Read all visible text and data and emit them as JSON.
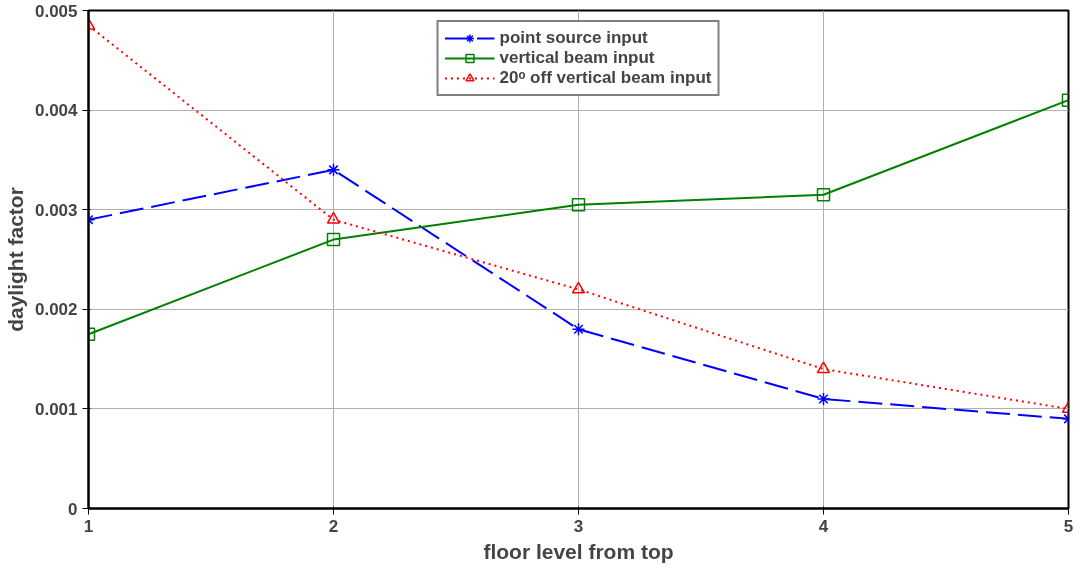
{
  "chart_data": {
    "type": "line",
    "xlabel": "floor level from top",
    "ylabel": "daylight factor",
    "x": [
      1,
      2,
      3,
      4,
      5
    ],
    "xlim": [
      1,
      5
    ],
    "xticks": [
      1,
      2,
      3,
      4,
      5
    ],
    "ylim": [
      0,
      0.005
    ],
    "yticks": [
      0,
      0.001,
      0.002,
      0.003,
      0.004,
      0.005
    ],
    "grid": true,
    "legend": "top",
    "series": [
      {
        "name": "point source input",
        "color": "#0000ff",
        "marker": "cross",
        "line_style": "dashed",
        "values": [
          0.0029,
          0.0034,
          0.0018,
          0.0011,
          0.0009
        ]
      },
      {
        "name": "vertical beam input",
        "color": "#008000",
        "marker": "square",
        "line_style": "solid",
        "values": [
          0.00175,
          0.0027,
          0.00305,
          0.00315,
          0.0041
        ]
      },
      {
        "name": "20ᵒ off vertical beam input",
        "color": "#ff0000",
        "marker": "triangle",
        "line_style": "dotted",
        "values": [
          0.00485,
          0.0029,
          0.0022,
          0.0014,
          0.001
        ]
      }
    ]
  }
}
